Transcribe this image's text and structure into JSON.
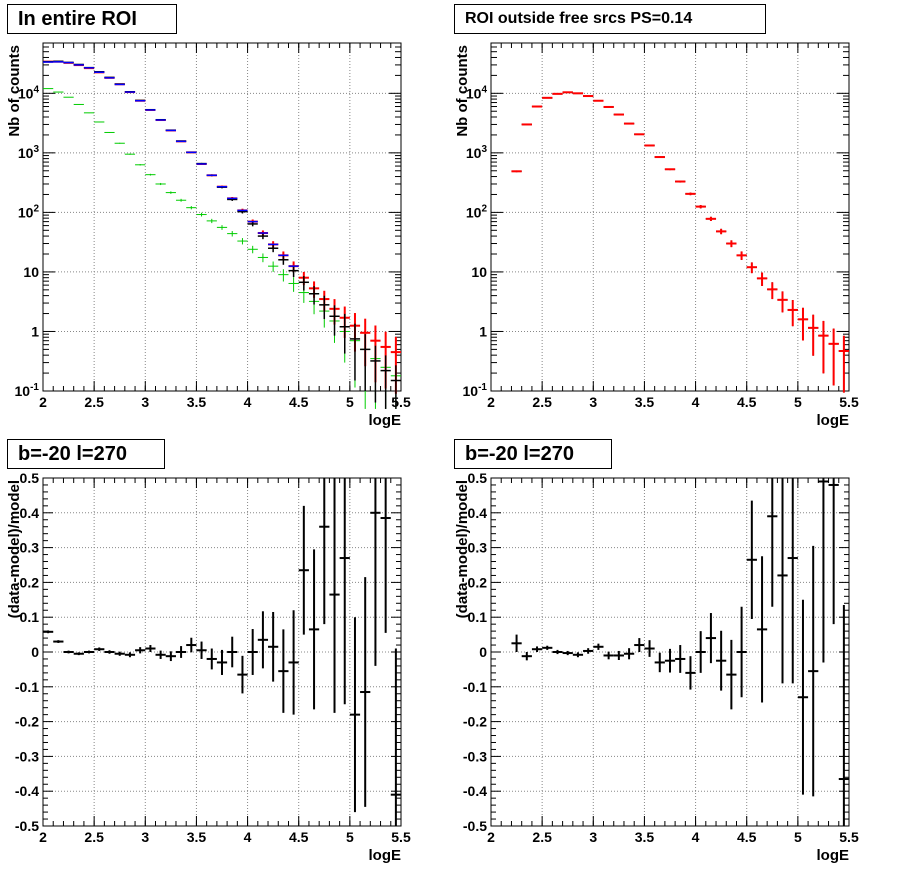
{
  "panels": [
    {
      "title": "In entire ROI",
      "xlabel": "logE",
      "ylabel": "Nb of counts",
      "xticks": [
        "2",
        "2.5",
        "3",
        "3.5",
        "4",
        "4.5",
        "5",
        "5.5"
      ],
      "yticks": [
        "10^-1",
        "1",
        "10",
        "10^2",
        "10^3",
        "10^4"
      ]
    },
    {
      "title": "ROI outside free srcs PS=0.14",
      "xlabel": "logE",
      "ylabel": "Nb of counts",
      "xticks": [
        "2",
        "2.5",
        "3",
        "3.5",
        "4",
        "4.5",
        "5",
        "5.5"
      ],
      "yticks": [
        "10^-1",
        "1",
        "10",
        "10^2",
        "10^3",
        "10^4"
      ]
    },
    {
      "title": "b=-20 l=270",
      "xlabel": "logE",
      "ylabel": "(data-model)/model",
      "xticks": [
        "2",
        "2.5",
        "3",
        "3.5",
        "4",
        "4.5",
        "5",
        "5.5"
      ],
      "yticks": [
        "-0.5",
        "-0.4",
        "-0.3",
        "-0.2",
        "-0.1",
        "0",
        "0.1",
        "0.2",
        "0.3",
        "0.4",
        "0.5"
      ]
    },
    {
      "title": "b=-20 l=270",
      "xlabel": "logE",
      "ylabel": "(data-model)/model",
      "xticks": [
        "2",
        "2.5",
        "3",
        "3.5",
        "4",
        "4.5",
        "5",
        "5.5"
      ],
      "yticks": [
        "-0.5",
        "-0.4",
        "-0.3",
        "-0.2",
        "-0.1",
        "0",
        "0.1",
        "0.2",
        "0.3",
        "0.4",
        "0.5"
      ]
    }
  ],
  "colors": {
    "data": "#000000",
    "model": "#ff0000",
    "model_top": "#0000ff",
    "component": "#00cc00",
    "grid": "#888888"
  },
  "chart_data": [
    {
      "type": "scatter",
      "title": "In entire ROI",
      "xlabel": "logE",
      "ylabel": "Nb of counts",
      "xlim": [
        2,
        5.5
      ],
      "ylim": [
        0.1,
        70000
      ],
      "yscale": "log",
      "grid": true,
      "bin_width": 0.1,
      "x": [
        2.05,
        2.15,
        2.25,
        2.35,
        2.45,
        2.55,
        2.65,
        2.75,
        2.85,
        2.95,
        3.05,
        3.15,
        3.25,
        3.35,
        3.45,
        3.55,
        3.65,
        3.75,
        3.85,
        3.95,
        4.05,
        4.15,
        4.25,
        4.35,
        4.45,
        4.55,
        4.65,
        4.75,
        4.85,
        4.95,
        5.05,
        5.15,
        5.25,
        5.35,
        5.45
      ],
      "series": [
        {
          "values": [
            34000,
            34500,
            33000,
            30500,
            27000,
            23000,
            18500,
            14300,
            10600,
            7600,
            5300,
            3600,
            2400,
            1580,
            1020,
            660,
            420,
            265,
            165,
            103,
            64,
            40,
            25,
            16,
            10.5,
            6.7,
            4.3,
            2.8,
            1.8,
            1.2,
            0.75,
            0.5,
            0.32,
            0.22,
            0.15
          ]
        },
        {
          "values": [
            34000,
            34000,
            32500,
            29800,
            26500,
            22500,
            18200,
            14200,
            10500,
            7500,
            5250,
            3560,
            2380,
            1560,
            1020,
            650,
            420,
            270,
            172,
            108,
            70,
            45,
            29,
            19,
            12.5,
            8,
            5.3,
            3.5,
            2.4,
            1.7,
            1.25,
            0.95,
            0.7,
            0.55,
            0.45
          ]
        },
        {
          "values": [
            33500,
            33800,
            32800,
            30000,
            26800,
            22600,
            18200,
            14100,
            10500,
            7500,
            5250,
            3560,
            2380,
            1560,
            1020,
            650,
            420,
            270,
            172,
            108,
            70,
            45,
            29,
            19,
            12.5,
            8,
            5.3,
            3.5,
            2.4,
            1.7,
            1.25,
            0.95,
            0.7,
            0.55,
            0.45
          ]
        },
        {
          "values": [
            12000,
            10500,
            8600,
            6500,
            4700,
            3300,
            2200,
            1450,
            950,
            630,
            430,
            300,
            215,
            160,
            120,
            92,
            72,
            56,
            44,
            33,
            24,
            17.5,
            12.5,
            9,
            6.4,
            4.5,
            3.2,
            2.2,
            1.5,
            1.0,
            0.7,
            0.5,
            0.35,
            0.25,
            0.18
          ]
        }
      ]
    },
    {
      "type": "scatter",
      "title": "ROI outside free srcs PS=0.14",
      "xlabel": "logE",
      "ylabel": "Nb of counts",
      "xlim": [
        2,
        5.5
      ],
      "ylim": [
        0.1,
        70000
      ],
      "yscale": "log",
      "grid": true,
      "bin_width": 0.1,
      "x": [
        2.25,
        2.35,
        2.45,
        2.55,
        2.65,
        2.75,
        2.85,
        2.95,
        3.05,
        3.15,
        3.25,
        3.35,
        3.45,
        3.55,
        3.65,
        3.75,
        3.85,
        3.95,
        4.05,
        4.15,
        4.25,
        4.35,
        4.45,
        4.55,
        4.65,
        4.75,
        4.85,
        4.95,
        5.05,
        5.15,
        5.25,
        5.35,
        5.45
      ],
      "series": [
        {
          "values": [
            490,
            3000,
            6000,
            8400,
            9800,
            10400,
            10000,
            9000,
            7500,
            5900,
            4400,
            3100,
            2050,
            1330,
            850,
            530,
            330,
            205,
            125,
            78,
            48,
            30,
            19,
            12,
            7.8,
            5.1,
            3.4,
            2.3,
            1.6,
            1.15,
            0.85,
            0.62,
            0.47
          ]
        },
        {
          "values": [
            490,
            3000,
            6000,
            8400,
            9800,
            10400,
            10000,
            9000,
            7500,
            5900,
            4400,
            3100,
            2050,
            1330,
            850,
            530,
            330,
            205,
            125,
            78,
            48,
            30,
            19,
            12,
            7.8,
            5.1,
            3.4,
            2.3,
            1.6,
            1.15,
            0.85,
            0.62,
            0.47
          ]
        }
      ]
    },
    {
      "type": "scatter",
      "title": "b=-20 l=270",
      "xlabel": "logE",
      "ylabel": "(data-model)/model",
      "xlim": [
        2,
        5.5
      ],
      "ylim": [
        -0.5,
        0.5
      ],
      "grid": true,
      "bin_width": 0.1,
      "x": [
        2.05,
        2.15,
        2.25,
        2.35,
        2.45,
        2.55,
        2.65,
        2.75,
        2.85,
        2.95,
        3.05,
        3.15,
        3.25,
        3.35,
        3.45,
        3.55,
        3.65,
        3.75,
        3.85,
        3.95,
        4.05,
        4.15,
        4.25,
        4.35,
        4.45,
        4.55,
        4.65,
        4.75,
        4.85,
        4.95,
        5.05,
        5.15,
        5.25,
        5.35,
        5.45
      ],
      "series": [
        {
          "values": [
            0.058,
            0.03,
            0.0,
            -0.005,
            0.0,
            0.008,
            0.0,
            -0.005,
            -0.008,
            0.005,
            0.01,
            -0.008,
            -0.012,
            0.0,
            0.02,
            0.005,
            -0.02,
            -0.03,
            0.0,
            -0.065,
            0.0,
            0.035,
            0.015,
            -0.055,
            -0.03,
            0.235,
            0.065,
            0.36,
            0.165,
            0.27,
            -0.18,
            -0.115,
            0.4,
            0.385,
            -0.41
          ],
          "errors": [
            0.004,
            0.004,
            0.004,
            0.004,
            0.004,
            0.005,
            0.005,
            0.006,
            0.007,
            0.009,
            0.01,
            0.012,
            0.014,
            0.017,
            0.021,
            0.025,
            0.03,
            0.036,
            0.044,
            0.054,
            0.066,
            0.082,
            0.1,
            0.12,
            0.15,
            0.185,
            0.23,
            0.28,
            0.34,
            0.42,
            0.28,
            0.33,
            0.44,
            0.33,
            0.42
          ]
        }
      ]
    },
    {
      "type": "scatter",
      "title": "b=-20 l=270",
      "xlabel": "logE",
      "ylabel": "(data-model)/model",
      "xlim": [
        2,
        5.5
      ],
      "ylim": [
        -0.5,
        0.5
      ],
      "grid": true,
      "bin_width": 0.1,
      "x": [
        2.25,
        2.35,
        2.45,
        2.55,
        2.65,
        2.75,
        2.85,
        2.95,
        3.05,
        3.15,
        3.25,
        3.35,
        3.45,
        3.55,
        3.65,
        3.75,
        3.85,
        3.95,
        4.05,
        4.15,
        4.25,
        4.35,
        4.45,
        4.55,
        4.65,
        4.75,
        4.85,
        4.95,
        5.05,
        5.15,
        5.25,
        5.35,
        5.45
      ],
      "series": [
        {
          "values": [
            0.025,
            -0.012,
            0.008,
            0.012,
            0.0,
            -0.003,
            -0.008,
            0.003,
            0.015,
            -0.01,
            -0.01,
            -0.005,
            0.02,
            0.01,
            -0.03,
            -0.025,
            -0.02,
            -0.06,
            0.0,
            0.04,
            -0.025,
            -0.065,
            0.0,
            0.265,
            0.065,
            0.39,
            0.22,
            0.27,
            -0.13,
            -0.055,
            0.49,
            0.48,
            -0.365
          ],
          "errors": [
            0.025,
            0.012,
            0.008,
            0.006,
            0.006,
            0.006,
            0.007,
            0.008,
            0.009,
            0.011,
            0.013,
            0.016,
            0.02,
            0.024,
            0.028,
            0.034,
            0.04,
            0.048,
            0.06,
            0.072,
            0.086,
            0.1,
            0.13,
            0.17,
            0.21,
            0.26,
            0.31,
            0.36,
            0.28,
            0.36,
            0.52,
            0.4,
            0.5
          ]
        }
      ]
    }
  ]
}
